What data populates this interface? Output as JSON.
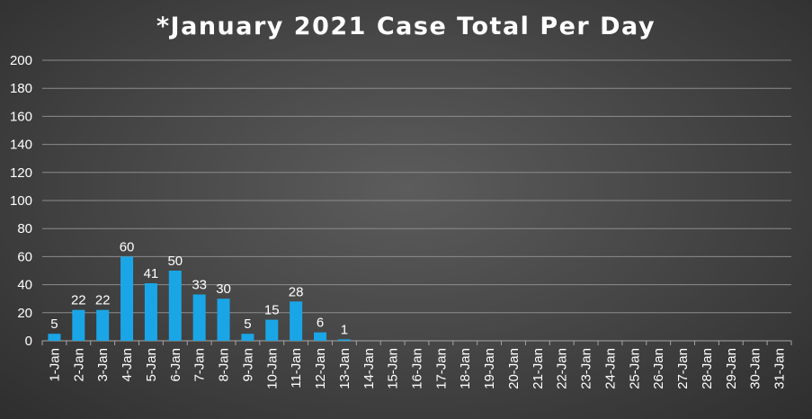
{
  "chart_data": {
    "type": "bar",
    "title": "*January 2021 Case Total Per Day",
    "xlabel": "",
    "ylabel": "",
    "ylim": [
      0,
      200
    ],
    "yticks": [
      0,
      20,
      40,
      60,
      80,
      100,
      120,
      140,
      160,
      180,
      200
    ],
    "grid": true,
    "categories": [
      "1-Jan",
      "2-Jan",
      "3-Jan",
      "4-Jan",
      "5-Jan",
      "6-Jan",
      "7-Jan",
      "8-Jan",
      "9-Jan",
      "10-Jan",
      "11-Jan",
      "12-Jan",
      "13-Jan",
      "14-Jan",
      "15-Jan",
      "16-Jan",
      "17-Jan",
      "18-Jan",
      "19-Jan",
      "20-Jan",
      "21-Jan",
      "22-Jan",
      "23-Jan",
      "24-Jan",
      "25-Jan",
      "26-Jan",
      "27-Jan",
      "28-Jan",
      "29-Jan",
      "30-Jan",
      "31-Jan"
    ],
    "values": [
      5,
      22,
      22,
      60,
      41,
      50,
      33,
      30,
      5,
      15,
      28,
      6,
      1,
      null,
      null,
      null,
      null,
      null,
      null,
      null,
      null,
      null,
      null,
      null,
      null,
      null,
      null,
      null,
      null,
      null,
      null
    ],
    "bar_color": "#1aa6e6",
    "background_color": "#484848",
    "gridline_color": "#8c8c8c"
  }
}
